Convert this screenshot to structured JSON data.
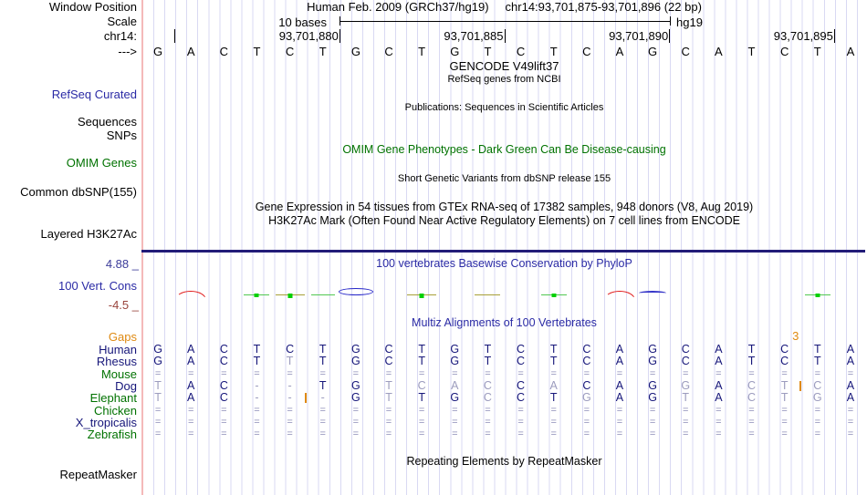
{
  "header": {
    "window_label": "Window Position",
    "assembly": "Human Feb. 2009 (GRCh37/hg19)",
    "range": "chr14:93,701,875-93,701,896 (22 bp)"
  },
  "scale": {
    "left_label": "Scale",
    "value": "10 bases",
    "genome": "hg19"
  },
  "ruler": {
    "chrom": "chr14:",
    "ticks": [
      {
        "label": "",
        "col_end": 1
      },
      {
        "label": "93,701,880",
        "col_end": 6
      },
      {
        "label": "93,701,885",
        "col_end": 11
      },
      {
        "label": "93,701,890",
        "col_end": 16
      },
      {
        "label": "93,701,895",
        "col_end": 21
      }
    ]
  },
  "sequence": {
    "strand": "--->",
    "bases": "GACTCTGCTGTCTCAGCATCTA"
  },
  "tracks": {
    "gencode_title": "GENCODE V49lift37",
    "refseq_sub": "RefSeq genes from NCBI",
    "refseq_label": "RefSeq Curated",
    "publications": "Publications: Sequences in Scientific Articles",
    "sequences_label": "Sequences",
    "snps_label": "SNPs",
    "omim_title": "OMIM Gene Phenotypes - Dark Green Can Be Disease-causing",
    "omim_label": "OMIM Genes",
    "dbsnp_title": "Short Genetic Variants from dbSNP release 155",
    "dbsnp_label": "Common dbSNP(155)",
    "gtex_title": "Gene Expression in 54 tissues from GTEx RNA-seq of 17382 samples, 948 donors (V8, Aug 2019)",
    "h3k27ac_title": "H3K27Ac Mark (Often Found Near Active Regulatory Elements) on 7 cell lines from ENCODE",
    "h3k27ac_label": "Layered H3K27Ac"
  },
  "conservation": {
    "title": "100 vertebrates Basewise Conservation by PhyloP",
    "label": "100 Vert. Cons",
    "max_label": "4.88 _",
    "min_label": "-4.5 _",
    "marks": [
      {
        "col": 2,
        "kind": "red-arc"
      },
      {
        "col": 4,
        "kind": "green-line-sq"
      },
      {
        "col": 5,
        "kind": "olive-line-sq"
      },
      {
        "col": 6,
        "kind": "green-line"
      },
      {
        "col": 7,
        "kind": "blue-lens"
      },
      {
        "col": 9,
        "kind": "olive-line-sq"
      },
      {
        "col": 11,
        "kind": "olive-line"
      },
      {
        "col": 13,
        "kind": "green-line-sq"
      },
      {
        "col": 15,
        "kind": "red-arc"
      },
      {
        "col": 16,
        "kind": "blue-line"
      },
      {
        "col": 21,
        "kind": "green-line-sq"
      }
    ]
  },
  "multiz": {
    "title": "Multiz Alignments of 100 Vertebrates",
    "gaps_label": "Gaps",
    "gap_numbers": [
      {
        "text": "3",
        "before_col": 21
      }
    ],
    "insertions": [
      {
        "row_index": 3,
        "before_col": 21
      },
      {
        "row_index": 4,
        "before_col": 6
      }
    ],
    "rows": [
      {
        "name": "Human",
        "color": "navy",
        "bases": "GACTCTGCTGTCTCAGCATCTA",
        "styles": "dddddddddddddddddddddd"
      },
      {
        "name": "Rhesus",
        "color": "navy",
        "bases": "GACTTTGCTGTCTCAGCATCTA",
        "styles": "ddddlddddddddddddddddd"
      },
      {
        "name": "Mouse",
        "color": "green",
        "bases": "======================",
        "styles": "eeeeeeeeeeeeeeeeeeeeee"
      },
      {
        "name": "Dog",
        "color": "navy",
        "bases": "TAC--TGTCACCACAGGACTCA",
        "styles": "lddggddlllldldddldllld"
      },
      {
        "name": "Elephant",
        "color": "green",
        "bases": "TAC---GTTGCCTGAGTACTGA",
        "styles": "lddgggdlddlddlddldllld"
      },
      {
        "name": "Chicken",
        "color": "green",
        "bases": "======================",
        "styles": "eeeeeeeeeeeeeeeeeeeeee"
      },
      {
        "name": "X_tropicalis",
        "color": "navy",
        "bases": "======================",
        "styles": "eeeeeeeeeeeeeeeeeeeeee"
      },
      {
        "name": "Zebrafish",
        "color": "green",
        "bases": "======================",
        "styles": "eeeeeeeeeeeeeeeeeeeeee"
      }
    ]
  },
  "repeat": {
    "title": "Repeating Elements by RepeatMasker",
    "label": "RepeatMasker"
  },
  "colors": {
    "track_label_blue": "#2a2aa5",
    "omim_green": "#007200",
    "gaps_orange": "#df8a12",
    "letter_navy": "#16167a",
    "letter_faded": "#9c9cbe",
    "grid_line": "#d9d9f3",
    "left_boundary_pink": "#f4b9b9",
    "h3k27ac_bar": "#221c78",
    "cons_max_blue": "#3c3c9a",
    "cons_min_red": "#99443c"
  }
}
